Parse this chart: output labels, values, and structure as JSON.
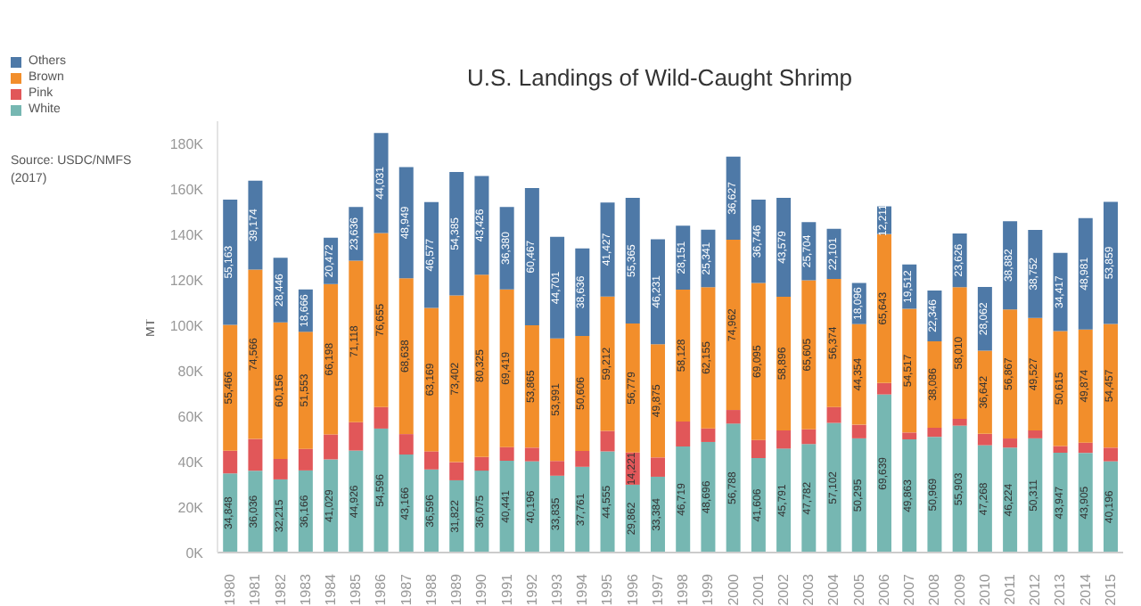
{
  "chart_data": {
    "type": "bar",
    "title": "U.S. Landings of Wild-Caught Shrimp",
    "ylabel": "MT",
    "annotations": [
      "Source: USDC/NMFS\n(2017)"
    ],
    "stacked": true,
    "legend": "top left",
    "grid": false,
    "categories": [
      "1980",
      "1981",
      "1982",
      "1983",
      "1984",
      "1985",
      "1986",
      "1987",
      "1988",
      "1989",
      "1990",
      "1991",
      "1992",
      "1993",
      "1994",
      "1995",
      "1996",
      "1997",
      "1998",
      "1999",
      "2000",
      "2001",
      "2002",
      "2003",
      "2004",
      "2005",
      "2006",
      "2007",
      "2008",
      "2009",
      "2010",
      "2011",
      "2012",
      "2013",
      "2014",
      "2015"
    ],
    "ylim": [
      0,
      190000
    ],
    "yticks": [
      {
        "value": 0,
        "label": "0K"
      },
      {
        "value": 20000,
        "label": "20K"
      },
      {
        "value": 40000,
        "label": "40K"
      },
      {
        "value": 60000,
        "label": "60K"
      },
      {
        "value": 80000,
        "label": "80K"
      },
      {
        "value": 100000,
        "label": "100K"
      },
      {
        "value": 120000,
        "label": "120K"
      },
      {
        "value": 140000,
        "label": "140K"
      },
      {
        "value": 160000,
        "label": "160K"
      },
      {
        "value": 180000,
        "label": "180K"
      }
    ],
    "series": [
      {
        "name": "White",
        "color": "#76b7b2",
        "values": [
          34848,
          36036,
          32215,
          36166,
          41029,
          44926,
          54596,
          43166,
          36596,
          31822,
          36075,
          40441,
          40196,
          33835,
          37761,
          44555,
          29862,
          33384,
          46719,
          48696,
          56788,
          41606,
          45791,
          47782,
          57102,
          50295,
          69639,
          49863,
          50969,
          55903,
          47268,
          46224,
          50311,
          43947,
          43905,
          40196
        ],
        "value_labels": [
          "34,848",
          "36,036",
          "32,215",
          "36,166",
          "41,029",
          "44,926",
          "54,596",
          "43,166",
          "36,596",
          "31,822",
          "36,075",
          "40,441",
          "40,196",
          "33,835",
          "37,761",
          "44,555",
          "29,862",
          "33,384",
          "46,719",
          "48,696",
          "56,788",
          "41,606",
          "45,791",
          "47,782",
          "57,102",
          "50,295",
          "69,639",
          "49,863",
          "50,969",
          "55,903",
          "47,268",
          "46,224",
          "50,311",
          "43,947",
          "43,905",
          "40,196"
        ]
      },
      {
        "name": "Pink",
        "color": "#e15759",
        "values": [
          10000,
          14000,
          9000,
          9500,
          11000,
          12500,
          9500,
          9000,
          8000,
          8000,
          6000,
          6000,
          6000,
          6500,
          7000,
          9000,
          14221,
          8500,
          11000,
          6000,
          6000,
          8000,
          8000,
          6500,
          7000,
          6000,
          5000,
          3000,
          4000,
          3000,
          5000,
          4000,
          3500,
          3000,
          4500,
          6000
        ],
        "value_labels": [
          null,
          null,
          null,
          null,
          null,
          null,
          null,
          null,
          null,
          null,
          null,
          null,
          null,
          null,
          null,
          null,
          "14,221",
          null,
          null,
          null,
          null,
          null,
          null,
          null,
          null,
          null,
          null,
          null,
          null,
          null,
          null,
          null,
          null,
          null,
          null,
          null
        ]
      },
      {
        "name": "Brown",
        "color": "#f28e2b",
        "values": [
          55466,
          74566,
          60156,
          51553,
          66198,
          71118,
          76655,
          68638,
          63169,
          73402,
          80325,
          69419,
          53865,
          53991,
          50606,
          59212,
          56779,
          49875,
          58128,
          62155,
          74962,
          69095,
          58896,
          65605,
          56374,
          44354,
          65643,
          54517,
          38086,
          58010,
          36642,
          56867,
          49527,
          50615,
          49874,
          54457
        ],
        "value_labels": [
          "55,466",
          "74,566",
          "60,156",
          "51,553",
          "66,198",
          "71,118",
          "76,655",
          "68,638",
          "63,169",
          "73,402",
          "80,325",
          "69,419",
          "53,865",
          "53,991",
          "50,606",
          "59,212",
          "56,779",
          "49,875",
          "58,128",
          "62,155",
          "74,962",
          "69,095",
          "58,896",
          "65,605",
          "56,374",
          "44,354",
          "65,643",
          "54,517",
          "38,086",
          "58,010",
          "36,642",
          "56,867",
          "49,527",
          "50,615",
          "49,874",
          "54,457"
        ]
      },
      {
        "name": "Others",
        "color": "#4e79a7",
        "values": [
          55163,
          39174,
          28446,
          18666,
          20472,
          23636,
          44031,
          48949,
          46577,
          54385,
          43426,
          36380,
          60467,
          44701,
          38636,
          41427,
          55365,
          46231,
          28151,
          25341,
          36627,
          36746,
          43579,
          25704,
          22101,
          18096,
          12211,
          19512,
          22346,
          23626,
          28062,
          38882,
          38752,
          34417,
          48981,
          53859
        ],
        "value_labels": [
          "55,163",
          "39,174",
          "28,446",
          "18,666",
          "20,472",
          "23,636",
          "44,031",
          "48,949",
          "46,577",
          "54,385",
          "43,426",
          "36,380",
          "60,467",
          "44,701",
          "38,636",
          "41,427",
          "55,365",
          "46,231",
          "28,151",
          "25,341",
          "36,627",
          "36,746",
          "43,579",
          "25,704",
          "22,101",
          "18,096",
          "12,211",
          "19,512",
          "22,346",
          "23,626",
          "28,062",
          "38,882",
          "38,752",
          "34,417",
          "48,981",
          "53,859"
        ]
      }
    ]
  }
}
